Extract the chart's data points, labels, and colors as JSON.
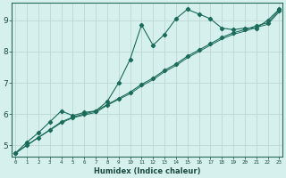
{
  "xlabel": "Humidex (Indice chaleur)",
  "bg_color": "#d6f0ee",
  "plot_bg_color": "#d6f0ee",
  "line_color": "#1a6b5a",
  "grid_color": "#c0d8d4",
  "x_ticks": [
    0,
    1,
    2,
    3,
    4,
    5,
    6,
    7,
    8,
    9,
    10,
    11,
    12,
    13,
    14,
    15,
    16,
    17,
    18,
    19,
    20,
    21,
    22,
    23
  ],
  "y_ticks": [
    5,
    6,
    7,
    8,
    9
  ],
  "xlim": [
    -0.3,
    23.3
  ],
  "ylim": [
    4.65,
    9.55
  ],
  "line1_x": [
    0,
    1,
    2,
    3,
    4,
    5,
    6,
    7,
    8,
    9,
    10,
    11,
    12,
    13,
    14,
    15,
    16,
    17,
    18,
    19,
    20,
    21,
    22,
    23
  ],
  "line1_y": [
    4.75,
    5.1,
    5.4,
    5.75,
    6.1,
    5.95,
    6.05,
    6.1,
    6.4,
    7.0,
    7.75,
    8.85,
    8.2,
    8.55,
    9.05,
    9.35,
    9.2,
    9.05,
    8.75,
    8.7,
    8.75,
    8.75,
    9.0,
    9.35
  ],
  "line2_x": [
    0,
    1,
    2,
    3,
    4,
    5,
    6,
    7,
    8,
    9,
    10,
    11,
    12,
    13,
    14,
    15,
    16,
    17,
    18,
    19,
    20,
    21,
    22,
    23
  ],
  "line2_y": [
    4.75,
    5.0,
    5.25,
    5.5,
    5.75,
    5.9,
    6.0,
    6.1,
    6.3,
    6.5,
    6.7,
    6.95,
    7.15,
    7.4,
    7.6,
    7.85,
    8.05,
    8.25,
    8.45,
    8.6,
    8.7,
    8.82,
    8.92,
    9.32
  ],
  "line3_x": [
    0,
    1,
    2,
    3,
    4,
    5,
    6,
    7,
    8,
    9,
    10,
    11,
    12,
    13,
    14,
    15,
    16,
    17,
    18,
    19,
    20,
    21,
    22,
    23
  ],
  "line3_y": [
    4.75,
    5.0,
    5.25,
    5.48,
    5.72,
    5.88,
    5.97,
    6.05,
    6.28,
    6.47,
    6.65,
    6.9,
    7.1,
    7.35,
    7.55,
    7.8,
    8.0,
    8.2,
    8.4,
    8.55,
    8.65,
    8.77,
    8.87,
    9.27
  ]
}
